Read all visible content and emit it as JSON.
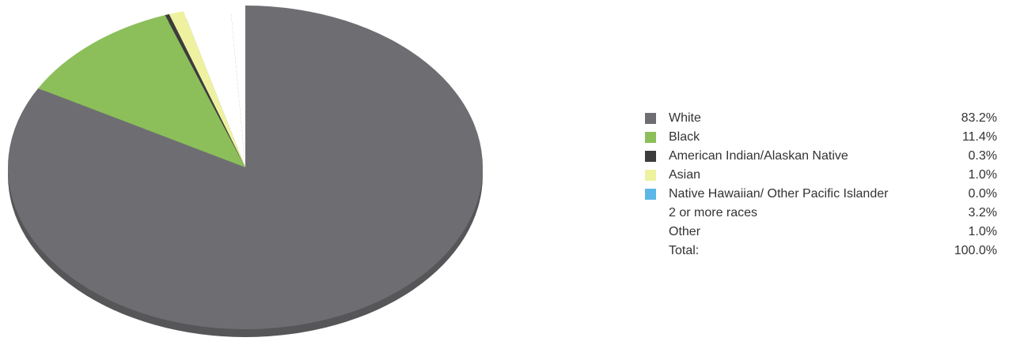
{
  "chart_data": {
    "type": "pie",
    "categories": [
      "White",
      "Black",
      "American Indian/Alaskan Native",
      "Asian",
      "Native Hawaiian/ Other Pacific Islander",
      "2 or more races",
      "Other"
    ],
    "values": [
      83.2,
      11.4,
      0.3,
      1.0,
      0.0,
      3.2,
      1.0
    ],
    "value_labels": [
      "83.2%",
      "11.4%",
      "0.3%",
      "1.0%",
      "0.0%",
      "3.2%",
      "1.0%"
    ],
    "colors": [
      "#6e6e72",
      "#8cbf5a",
      "#3c3c3c",
      "#eef2a0",
      "#5bb8e6",
      "#ffffff",
      "#ffffff"
    ],
    "total_label": "Total:",
    "total_value": "100.0%",
    "legend_position": "right"
  }
}
